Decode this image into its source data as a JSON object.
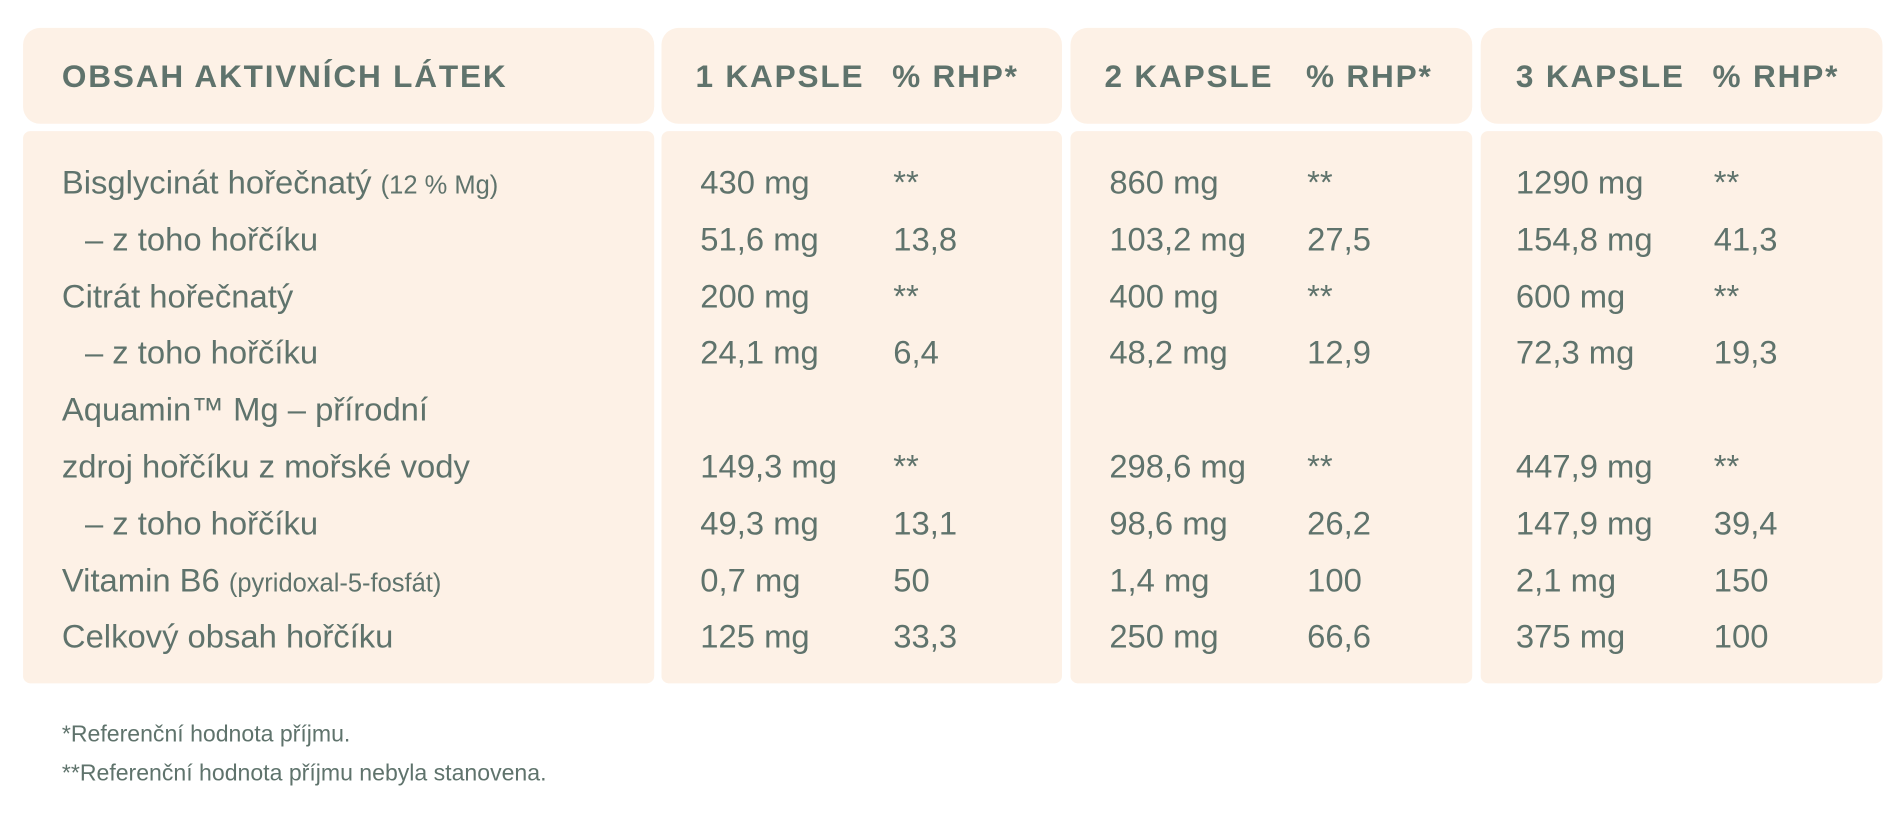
{
  "header": {
    "label": "OBSAH AKTIVNÍCH LÁTEK",
    "columns": [
      {
        "capsules": "1 KAPSLE",
        "rhp": "% RHP*"
      },
      {
        "capsules": "2 KAPSLE",
        "rhp": "% RHP*"
      },
      {
        "capsules": "3 KAPSLE",
        "rhp": "% RHP*"
      }
    ]
  },
  "rows": [
    {
      "name": "Bisglycinát hořečnatý",
      "note": "(12 % Mg)",
      "values": [
        [
          "430 mg",
          "**"
        ],
        [
          "860 mg",
          "**"
        ],
        [
          "1290 mg",
          "**"
        ]
      ]
    },
    {
      "name": "– z toho hořčíku",
      "sub": true,
      "values": [
        [
          "51,6 mg",
          "13,8"
        ],
        [
          "103,2 mg",
          "27,5"
        ],
        [
          "154,8 mg",
          "41,3"
        ]
      ]
    },
    {
      "name": "Citrát hořečnatý",
      "values": [
        [
          "200 mg",
          "**"
        ],
        [
          "400 mg",
          "**"
        ],
        [
          "600 mg",
          "**"
        ]
      ]
    },
    {
      "name": "– z toho hořčíku",
      "sub": true,
      "values": [
        [
          "24,1 mg",
          "6,4"
        ],
        [
          "48,2 mg",
          "12,9"
        ],
        [
          "72,3 mg",
          "19,3"
        ]
      ]
    },
    {
      "name": "Aquamin™ Mg – přírodní"
    },
    {
      "name": "zdroj hořčíku z mořské vody",
      "values": [
        [
          "149,3 mg",
          "**"
        ],
        [
          "298,6 mg",
          "**"
        ],
        [
          "447,9 mg",
          "**"
        ]
      ]
    },
    {
      "name": "– z toho hořčíku",
      "sub": true,
      "values": [
        [
          "49,3 mg",
          "13,1"
        ],
        [
          "98,6 mg",
          "26,2"
        ],
        [
          "147,9 mg",
          "39,4"
        ]
      ]
    },
    {
      "name": "Vitamin B6",
      "note": "(pyridoxal-5-fosfát)",
      "values": [
        [
          "0,7 mg",
          "50"
        ],
        [
          "1,4 mg",
          "100"
        ],
        [
          "2,1 mg",
          "150"
        ]
      ]
    },
    {
      "name": "Celkový obsah hořčíku",
      "values": [
        [
          "125 mg",
          "33,3"
        ],
        [
          "250 mg",
          "66,6"
        ],
        [
          "375 mg",
          "100"
        ]
      ]
    }
  ],
  "footnotes": [
    "*Referenční hodnota příjmu.",
    "**Referenční hodnota příjmu nebyla stanovena."
  ]
}
